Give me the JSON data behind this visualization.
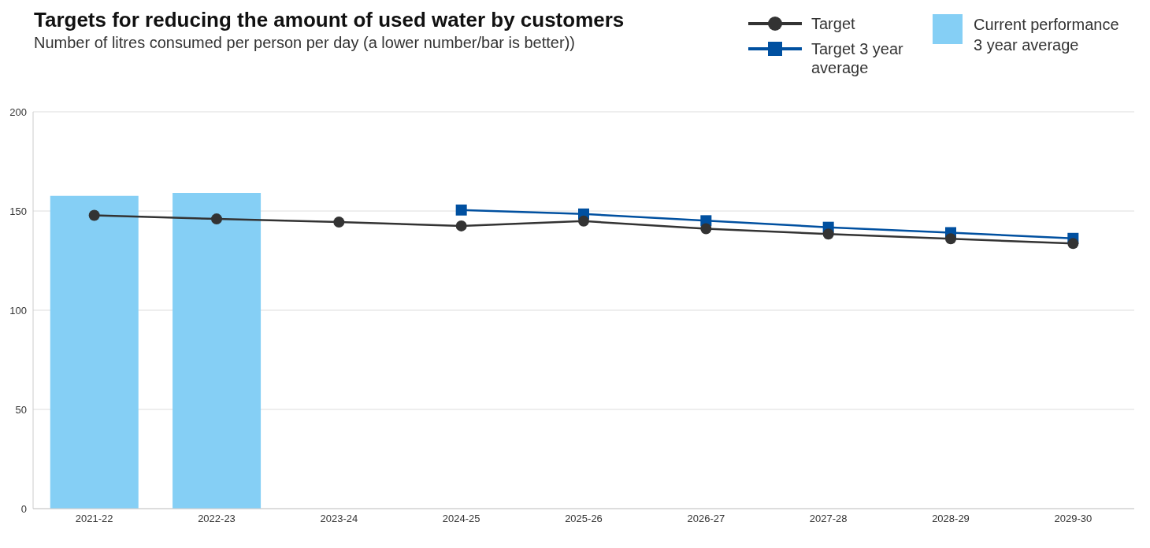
{
  "chart_data": {
    "type": "bar",
    "title": "Targets for reducing the amount of used water by customers",
    "subtitle": "Number of litres consumed per person per day (a lower number/bar is better))",
    "categories": [
      "2021-22",
      "2022-23",
      "2023-24",
      "2024-25",
      "2025-26",
      "2026-27",
      "2027-28",
      "2028-29",
      "2029-30"
    ],
    "series": [
      {
        "name": "Target",
        "type": "line",
        "color": "#333333",
        "marker": "circle",
        "values": [
          147.8,
          146,
          144.4,
          142.5,
          144.9,
          141.1,
          138.4,
          136,
          133.6
        ]
      },
      {
        "name": "Target 3 year average",
        "type": "line",
        "color": "#0050a0",
        "marker": "square",
        "values": [
          null,
          null,
          null,
          150.5,
          148.5,
          145.1,
          141.8,
          139.1,
          136.2
        ]
      },
      {
        "name": "Current performance 3 year average",
        "color": "#85cff5",
        "values": [
          157.6,
          159.1,
          null,
          null,
          null,
          null,
          null,
          null,
          null
        ]
      }
    ],
    "ylim": [
      0,
      200
    ],
    "yticks": [
      0,
      50,
      100,
      150,
      200
    ],
    "grid": "y",
    "legend": "top right"
  }
}
